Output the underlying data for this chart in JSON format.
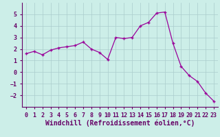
{
  "x": [
    0,
    1,
    2,
    3,
    4,
    5,
    6,
    7,
    8,
    9,
    10,
    11,
    12,
    13,
    14,
    15,
    16,
    17,
    18,
    19,
    20,
    21,
    22,
    23
  ],
  "y": [
    1.6,
    1.8,
    1.5,
    1.9,
    2.1,
    2.2,
    2.3,
    2.6,
    2.0,
    1.7,
    1.1,
    3.0,
    2.9,
    3.0,
    4.0,
    4.3,
    5.1,
    5.2,
    2.5,
    0.5,
    -0.3,
    -0.8,
    -1.8,
    -2.5
  ],
  "line_color": "#990099",
  "marker": "+",
  "bg_color": "#cceee8",
  "grid_color": "#aacccc",
  "axis_color": "#660066",
  "xlabel": "Windchill (Refroidissement éolien,°C)",
  "ylim": [
    -3,
    6
  ],
  "yticks": [
    -2,
    -1,
    0,
    1,
    2,
    3,
    4,
    5
  ],
  "xticks": [
    0,
    1,
    2,
    3,
    4,
    5,
    6,
    7,
    8,
    9,
    10,
    11,
    12,
    13,
    14,
    15,
    16,
    17,
    18,
    19,
    20,
    21,
    22,
    23
  ],
  "font_color": "#660066",
  "tick_fontsize": 6.0,
  "xlabel_fontsize": 7.0
}
